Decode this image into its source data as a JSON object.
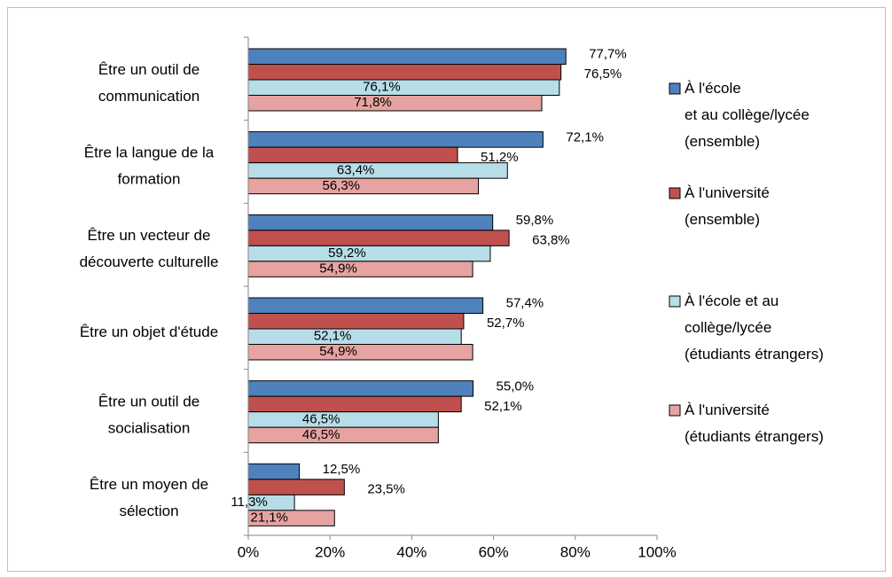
{
  "chart_data": {
    "type": "hbar",
    "categories": [
      "Être un outil de\ncommunication",
      "Être la langue de la\nformation",
      "Être un vecteur de\ndécouverte culturelle",
      "Être un objet d'étude",
      "Être un outil de\nsocialisation",
      "Être un moyen de\nsélection"
    ],
    "series": [
      {
        "name": "À l'école\net au collège/lycée\n(ensemble)",
        "color": "#4f81bd",
        "label_color": "#000000",
        "values": [
          77.7,
          72.1,
          59.8,
          57.4,
          55.0,
          12.5
        ],
        "value_labels": [
          "77,7%",
          "72,1%",
          "59,8%",
          "57,4%",
          "55,0%",
          "12,5%"
        ]
      },
      {
        "name": "À l'université\n(ensemble)",
        "color": "#c0504d",
        "label_color": "#000000",
        "values": [
          76.5,
          51.2,
          63.8,
          52.7,
          52.1,
          23.5
        ],
        "value_labels": [
          "76,5%",
          "51,2%",
          "63,8%",
          "52,7%",
          "52,1%",
          "23,5%"
        ]
      },
      {
        "name": "À l'école et au\ncollège/lycée\n(étudiants étrangers)",
        "color": "#b7dee8",
        "label_color": "#1f5f9f",
        "values": [
          76.1,
          63.4,
          59.2,
          52.1,
          46.5,
          11.3
        ],
        "value_labels": [
          "76,1%",
          "63,4%",
          "59,2%",
          "52,1%",
          "46,5%",
          "11,3%"
        ]
      },
      {
        "name": "À l'université\n(étudiants étrangers)",
        "color": "#e6a3a1",
        "label_color": "#7a2a2a",
        "values": [
          71.8,
          56.3,
          54.9,
          54.9,
          46.5,
          21.1
        ],
        "value_labels": [
          "71,8%",
          "56,3%",
          "54,9%",
          "54,9%",
          "46,5%",
          "21,1%"
        ]
      }
    ],
    "xlim": [
      0,
      100
    ],
    "xticks": [
      {
        "value": 0,
        "label": "0%"
      },
      {
        "value": 20,
        "label": "20%"
      },
      {
        "value": 40,
        "label": "40%"
      },
      {
        "value": 60,
        "label": "60%"
      },
      {
        "value": 80,
        "label": "80%"
      },
      {
        "value": 100,
        "label": "100%"
      }
    ],
    "grid": false,
    "legend": "right"
  }
}
